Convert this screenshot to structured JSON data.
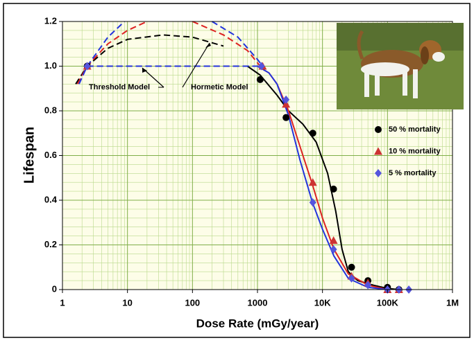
{
  "chart_data": {
    "type": "scatter",
    "x_label": "Dose Rate (mGy/year)",
    "y_label": "Lifespan",
    "log_x": true,
    "grid": true,
    "xlim": [
      1,
      1000000
    ],
    "ylim": [
      0,
      1.2
    ],
    "xticks": [
      1,
      10,
      100,
      1000,
      {
        "value": 10000,
        "label": "10K"
      },
      {
        "value": 100000,
        "label": "100K"
      },
      {
        "value": 1000000,
        "label": "1M"
      }
    ],
    "yticks": [
      0,
      0.2,
      0.4,
      0.6,
      0.8,
      {
        "value": 1,
        "label": "1.0"
      },
      1.2
    ],
    "series": [
      {
        "name": "50 % mortality",
        "color": "#000000",
        "marker": "circle",
        "x": [
          2.4,
          1100,
          2750,
          7100,
          14800,
          28000,
          50000,
          100000,
          150000
        ],
        "values": [
          1.0,
          0.94,
          0.77,
          0.7,
          0.45,
          0.1,
          0.04,
          0.01,
          0
        ]
      },
      {
        "name": "10 % mortality",
        "color": "#cc3333",
        "marker": "triangle",
        "x": [
          2.4,
          1200,
          2750,
          7100,
          14800,
          28000,
          50000,
          100000,
          150000
        ],
        "values": [
          1.0,
          1.0,
          0.83,
          0.48,
          0.22,
          0.06,
          0.03,
          0.0,
          0
        ]
      },
      {
        "name": "5 % mortality",
        "color": "#5555dd",
        "marker": "diamond",
        "x": [
          2.4,
          1150,
          2750,
          7100,
          14800,
          28000,
          50000,
          100000,
          150000,
          213000
        ],
        "values": [
          1.0,
          1.0,
          0.85,
          0.39,
          0.18,
          0.05,
          0.02,
          0,
          0,
          0
        ]
      }
    ],
    "lines": [
      {
        "color": "#000000",
        "dashed": false,
        "x": [
          700,
          1100,
          2000,
          3000,
          5000,
          8000,
          12000,
          16000,
          20000,
          25000,
          35000,
          60000,
          100000,
          150000
        ],
        "values": [
          1.0,
          0.96,
          0.87,
          0.8,
          0.74,
          0.66,
          0.52,
          0.35,
          0.18,
          0.08,
          0.04,
          0.02,
          0.005,
          0
        ]
      },
      {
        "color": "#dd2222",
        "dashed": false,
        "x": [
          1000,
          1500,
          2000,
          3000,
          5000,
          7000,
          10000,
          15000,
          25000,
          50000,
          100000
        ],
        "values": [
          1.0,
          0.97,
          0.92,
          0.8,
          0.6,
          0.47,
          0.32,
          0.18,
          0.07,
          0.02,
          0.0
        ]
      },
      {
        "color": "#2233dd",
        "dashed": false,
        "x": [
          1000,
          1500,
          2000,
          3000,
          4500,
          7000,
          10000,
          15000,
          25000,
          50000,
          100000
        ],
        "values": [
          1.0,
          0.97,
          0.92,
          0.78,
          0.58,
          0.39,
          0.27,
          0.15,
          0.05,
          0.01,
          0
        ]
      },
      {
        "color": "#000000",
        "dashed": true,
        "x": [
          2.4,
          1000
        ],
        "values": [
          1.0,
          1.0
        ]
      },
      {
        "color": "#dd2222",
        "dashed": true,
        "x": [
          2.4,
          1000
        ],
        "values": [
          1.0,
          1.0
        ]
      },
      {
        "color": "#2233dd",
        "dashed": true,
        "x": [
          2.4,
          1000
        ],
        "values": [
          1.0,
          1.0
        ]
      },
      {
        "color": "#000000",
        "dashed": true,
        "x": [
          1.6,
          2.4,
          5,
          10,
          35,
          100,
          300
        ],
        "values": [
          0.92,
          1.0,
          1.08,
          1.12,
          1.14,
          1.13,
          1.09
        ]
      },
      {
        "color": "#dd2222",
        "dashed": true,
        "x": [
          1.7,
          2.4,
          5,
          10,
          20,
          45,
          100,
          300,
          700,
          1100
        ],
        "values": [
          0.92,
          1.0,
          1.1,
          1.16,
          1.2,
          null,
          1.2,
          1.14,
          1.07,
          1.0
        ]
      },
      {
        "color": "#2233dd",
        "dashed": true,
        "x": [
          1.8,
          2.4,
          5,
          9,
          50,
          200,
          500,
          1000,
          1200
        ],
        "values": [
          0.92,
          1.0,
          1.13,
          1.2,
          null,
          1.2,
          1.13,
          1.03,
          1.0
        ]
      }
    ],
    "annotations": [
      "Threshold Model",
      "Hormetic Model"
    ]
  }
}
